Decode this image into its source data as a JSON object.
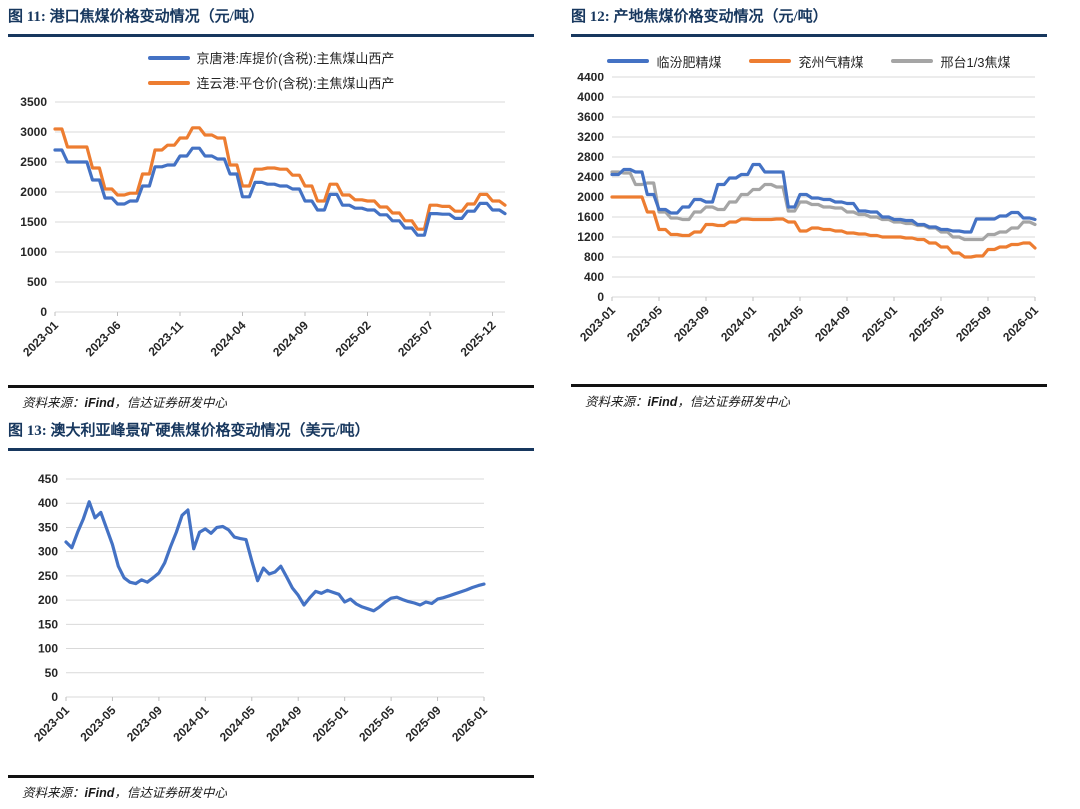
{
  "source_note": {
    "prefix": "资料来源：",
    "brand": "iFind",
    "suffix": "，信达证券研发中心"
  },
  "palette": {
    "blue": "#4472C4",
    "orange": "#ED7D31",
    "gray": "#A5A5A5",
    "title_navy": "#17375E",
    "gridline": "#D9D9D9"
  },
  "chart_data": [
    {
      "id": "fig11-port-coking-coal",
      "type": "line",
      "title": "图 11: 港口焦煤价格变动情况（元/吨）",
      "ylim": [
        0,
        3500
      ],
      "ystep": 500,
      "grid": "horizontal",
      "legend_position": "top-stacked",
      "x_span_months": 36,
      "step_line": true,
      "xticks": [
        {
          "label": "2023-01",
          "month": 0
        },
        {
          "label": "2023-06",
          "month": 5
        },
        {
          "label": "2023-11",
          "month": 10
        },
        {
          "label": "2024-04",
          "month": 15
        },
        {
          "label": "2024-09",
          "month": 20
        },
        {
          "label": "2025-02",
          "month": 25
        },
        {
          "label": "2025-07",
          "month": 30
        },
        {
          "label": "2025-12",
          "month": 35
        }
      ],
      "series": [
        {
          "name": "京唐港:库提价(含税):主焦煤山西产",
          "color": "#4472C4",
          "values": [
            2700,
            2500,
            2500,
            2200,
            1900,
            1800,
            1850,
            2100,
            2420,
            2450,
            2600,
            2730,
            2600,
            2550,
            2300,
            1920,
            2160,
            2130,
            2100,
            2050,
            1850,
            1700,
            1960,
            1780,
            1730,
            1700,
            1620,
            1520,
            1400,
            1280,
            1640,
            1630,
            1560,
            1680,
            1810,
            1700,
            1640
          ]
        },
        {
          "name": "连云港:平仓价(含税):主焦煤山西产",
          "color": "#ED7D31",
          "values": [
            3050,
            2750,
            2750,
            2400,
            2050,
            1950,
            1980,
            2300,
            2700,
            2780,
            2900,
            3070,
            2950,
            2900,
            2450,
            2100,
            2380,
            2400,
            2380,
            2280,
            2100,
            1850,
            2130,
            1950,
            1870,
            1850,
            1750,
            1650,
            1520,
            1380,
            1780,
            1760,
            1680,
            1800,
            1960,
            1850,
            1780
          ]
        }
      ]
    },
    {
      "id": "fig12-mine-coking-coal",
      "type": "line",
      "title": "图 12: 产地焦煤价格变动情况（元/吨）",
      "ylim": [
        0,
        4400
      ],
      "ystep": 400,
      "grid": "horizontal",
      "legend_position": "top-row",
      "x_span_months": 36,
      "step_line": true,
      "xticks": [
        {
          "label": "2023-01",
          "month": 0
        },
        {
          "label": "2023-05",
          "month": 4
        },
        {
          "label": "2023-09",
          "month": 8
        },
        {
          "label": "2024-01",
          "month": 12
        },
        {
          "label": "2024-05",
          "month": 16
        },
        {
          "label": "2024-09",
          "month": 20
        },
        {
          "label": "2025-01",
          "month": 24
        },
        {
          "label": "2025-05",
          "month": 28
        },
        {
          "label": "2025-09",
          "month": 32
        },
        {
          "label": "2026-01",
          "month": 36
        }
      ],
      "series": [
        {
          "name": "临汾肥精煤",
          "color": "#4472C4",
          "values": [
            2450,
            2550,
            2500,
            2050,
            1750,
            1680,
            1800,
            1950,
            1900,
            2250,
            2380,
            2450,
            2650,
            2500,
            2500,
            1800,
            2050,
            1980,
            1950,
            1900,
            1870,
            1720,
            1700,
            1600,
            1550,
            1530,
            1450,
            1400,
            1350,
            1320,
            1300,
            1560,
            1560,
            1620,
            1690,
            1580,
            1550
          ]
        },
        {
          "name": "兖州气精煤",
          "color": "#ED7D31",
          "values": [
            2000,
            2000,
            2000,
            1700,
            1350,
            1250,
            1230,
            1300,
            1450,
            1430,
            1500,
            1560,
            1550,
            1550,
            1560,
            1500,
            1320,
            1380,
            1350,
            1320,
            1280,
            1260,
            1230,
            1200,
            1200,
            1180,
            1150,
            1080,
            1000,
            880,
            800,
            820,
            950,
            1000,
            1050,
            1080,
            980
          ]
        },
        {
          "name": "邢台1/3焦煤",
          "color": "#A5A5A5",
          "values": [
            2500,
            2480,
            2250,
            2280,
            1700,
            1580,
            1550,
            1700,
            1800,
            1750,
            1900,
            2050,
            2150,
            2250,
            2200,
            1720,
            1900,
            1850,
            1800,
            1780,
            1700,
            1650,
            1600,
            1550,
            1500,
            1470,
            1430,
            1380,
            1300,
            1200,
            1150,
            1150,
            1250,
            1300,
            1380,
            1500,
            1450
          ]
        }
      ]
    },
    {
      "id": "fig13-australia-peak-downs",
      "type": "line",
      "title": "图 13: 澳大利亚峰景矿硬焦煤价格变动情况（美元/吨）",
      "ylim": [
        0,
        450
      ],
      "ystep": 50,
      "grid": "horizontal",
      "legend_position": "none",
      "x_span_months": 36,
      "step_line": false,
      "xticks": [
        {
          "label": "2023-01",
          "month": 0
        },
        {
          "label": "2023-05",
          "month": 4
        },
        {
          "label": "2023-09",
          "month": 8
        },
        {
          "label": "2024-01",
          "month": 12
        },
        {
          "label": "2024-05",
          "month": 16
        },
        {
          "label": "2024-09",
          "month": 20
        },
        {
          "label": "2025-01",
          "month": 24
        },
        {
          "label": "2025-05",
          "month": 28
        },
        {
          "label": "2025-09",
          "month": 32
        },
        {
          "label": "2026-01",
          "month": 36
        }
      ],
      "series": [
        {
          "name": "澳大利亚峰景矿硬焦煤",
          "color": "#4472C4",
          "values": [
            320,
            308,
            340,
            368,
            403,
            370,
            381,
            348,
            315,
            270,
            246,
            237,
            234,
            242,
            237,
            246,
            256,
            277,
            310,
            340,
            375,
            386,
            306,
            340,
            347,
            338,
            350,
            352,
            345,
            330,
            327,
            325,
            281,
            240,
            266,
            254,
            258,
            270,
            248,
            225,
            210,
            190,
            205,
            218,
            214,
            220,
            216,
            212,
            196,
            202,
            192,
            186,
            182,
            178,
            186,
            196,
            204,
            206,
            201,
            197,
            194,
            190,
            196,
            193,
            202,
            205,
            209,
            213,
            217,
            221,
            226,
            230,
            233
          ]
        }
      ]
    }
  ]
}
